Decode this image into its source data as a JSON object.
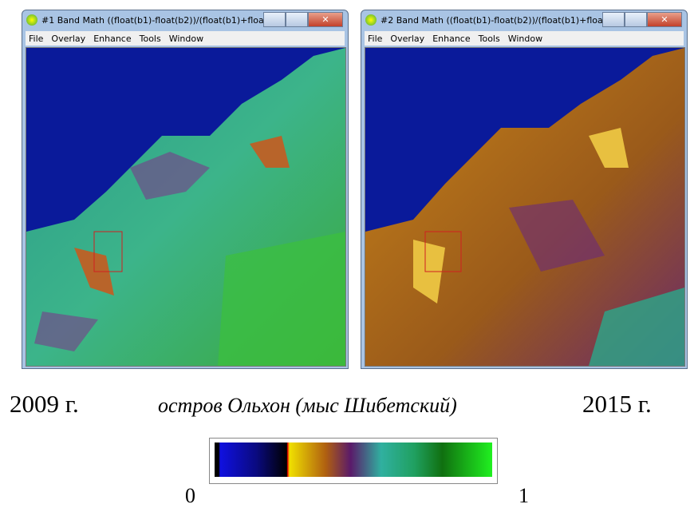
{
  "windows": [
    {
      "title": "#1 Band Math ((float(b1)-float(b2))/(float(b1)+floa…",
      "menu": [
        "File",
        "Overlay",
        "Enhance",
        "Tools",
        "Window"
      ]
    },
    {
      "title": "#2 Band Math ((float(b1)-float(b2))/(float(b1)+floa…",
      "menu": [
        "File",
        "Overlay",
        "Enhance",
        "Tools",
        "Window"
      ]
    }
  ],
  "captions": {
    "left": "2009 г.",
    "center": "остров Ольхон (мыс Шибетский)",
    "right": "2015 г."
  },
  "colorbar": {
    "min_label": "0",
    "max_label": "1"
  }
}
